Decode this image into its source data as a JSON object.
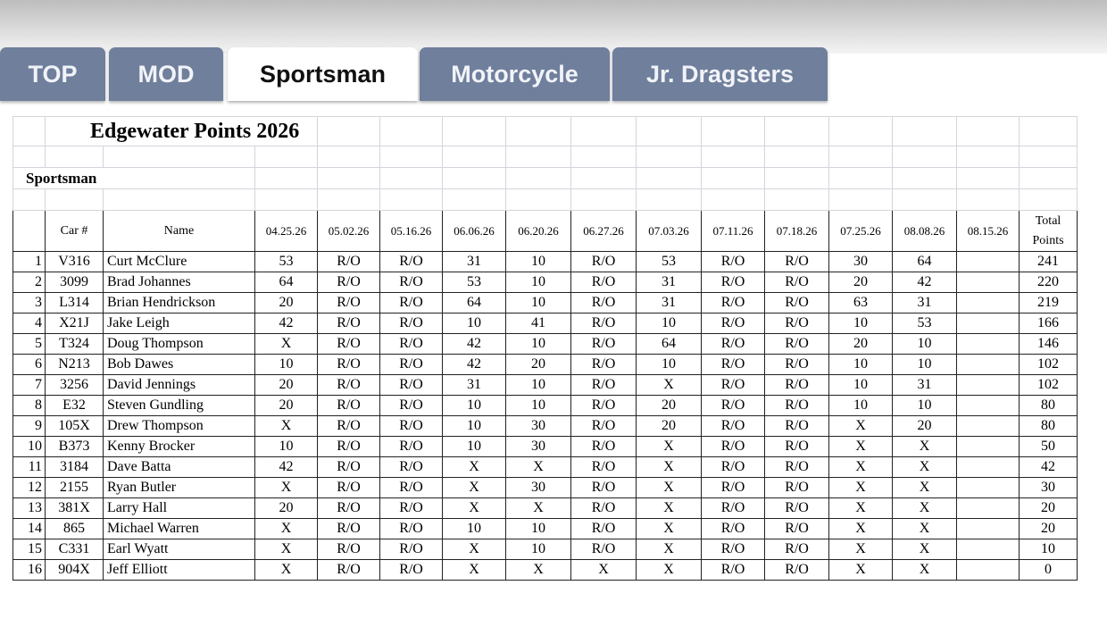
{
  "tabs": [
    "TOP",
    "MOD",
    "Sportsman",
    "Motorcycle",
    "Jr. Dragsters"
  ],
  "active_tab": 2,
  "table": {
    "title": "Edgewater Points 2026",
    "section": "Sportsman",
    "columns": [
      "Car #",
      "Name",
      "04.25.26",
      "05.02.26",
      "05.16.26",
      "06.06.26",
      "06.20.26",
      "06.27.26",
      "07.03.26",
      "07.11.26",
      "07.18.26",
      "07.25.26",
      "08.08.26",
      "08.15.26",
      "Total Points"
    ],
    "rows": [
      [
        1,
        "V316",
        "Curt McClure",
        53,
        "R/O",
        "R/O",
        31,
        10,
        "R/O",
        53,
        "R/O",
        "R/O",
        30,
        64,
        null,
        241
      ],
      [
        2,
        "3099",
        "Brad Johannes",
        64,
        "R/O",
        "R/O",
        53,
        10,
        "R/O",
        31,
        "R/O",
        "R/O",
        20,
        42,
        null,
        220
      ],
      [
        3,
        "L314",
        "Brian Hendrickson",
        20,
        "R/O",
        "R/O",
        64,
        10,
        "R/O",
        31,
        "R/O",
        "R/O",
        63,
        31,
        null,
        219
      ],
      [
        4,
        "X21J",
        "Jake Leigh",
        42,
        "R/O",
        "R/O",
        10,
        41,
        "R/O",
        10,
        "R/O",
        "R/O",
        10,
        53,
        null,
        166
      ],
      [
        5,
        "T324",
        "Doug Thompson",
        "X",
        "R/O",
        "R/O",
        42,
        10,
        "R/O",
        64,
        "R/O",
        "R/O",
        20,
        10,
        null,
        146
      ],
      [
        6,
        "N213",
        "Bob Dawes",
        10,
        "R/O",
        "R/O",
        42,
        20,
        "R/O",
        10,
        "R/O",
        "R/O",
        10,
        10,
        null,
        102
      ],
      [
        7,
        "3256",
        "David Jennings",
        20,
        "R/O",
        "R/O",
        31,
        10,
        "R/O",
        "X",
        "R/O",
        "R/O",
        10,
        31,
        null,
        102
      ],
      [
        8,
        "E32",
        "Steven Gundling",
        20,
        "R/O",
        "R/O",
        10,
        10,
        "R/O",
        20,
        "R/O",
        "R/O",
        10,
        10,
        null,
        80
      ],
      [
        9,
        "105X",
        "Drew Thompson",
        "X",
        "R/O",
        "R/O",
        10,
        30,
        "R/O",
        20,
        "R/O",
        "R/O",
        "X",
        20,
        null,
        80
      ],
      [
        10,
        "B373",
        "Kenny Brocker",
        10,
        "R/O",
        "R/O",
        10,
        30,
        "R/O",
        "X",
        "R/O",
        "R/O",
        "X",
        "X",
        null,
        50
      ],
      [
        11,
        "3184",
        "Dave Batta",
        42,
        "R/O",
        "R/O",
        "X",
        "X",
        "R/O",
        "X",
        "R/O",
        "R/O",
        "X",
        "X",
        null,
        42
      ],
      [
        12,
        "2155",
        "Ryan Butler",
        "X",
        "R/O",
        "R/O",
        "X",
        30,
        "R/O",
        "X",
        "R/O",
        "R/O",
        "X",
        "X",
        null,
        30
      ],
      [
        13,
        "381X",
        "Larry Hall",
        20,
        "R/O",
        "R/O",
        "X",
        "X",
        "R/O",
        "X",
        "R/O",
        "R/O",
        "X",
        "X",
        null,
        20
      ],
      [
        14,
        "865",
        "Michael Warren",
        "X",
        "R/O",
        "R/O",
        10,
        10,
        "R/O",
        "X",
        "R/O",
        "R/O",
        "X",
        "X",
        null,
        20
      ],
      [
        15,
        "C331",
        "Earl Wyatt",
        "X",
        "R/O",
        "R/O",
        "X",
        10,
        "R/O",
        "X",
        "R/O",
        "R/O",
        "X",
        "X",
        null,
        10
      ],
      [
        16,
        "904X",
        "Jeff Elliott",
        "X",
        "R/O",
        "R/O",
        "X",
        "X",
        "X",
        "X",
        "R/O",
        "R/O",
        "X",
        "X",
        null,
        0
      ]
    ]
  }
}
